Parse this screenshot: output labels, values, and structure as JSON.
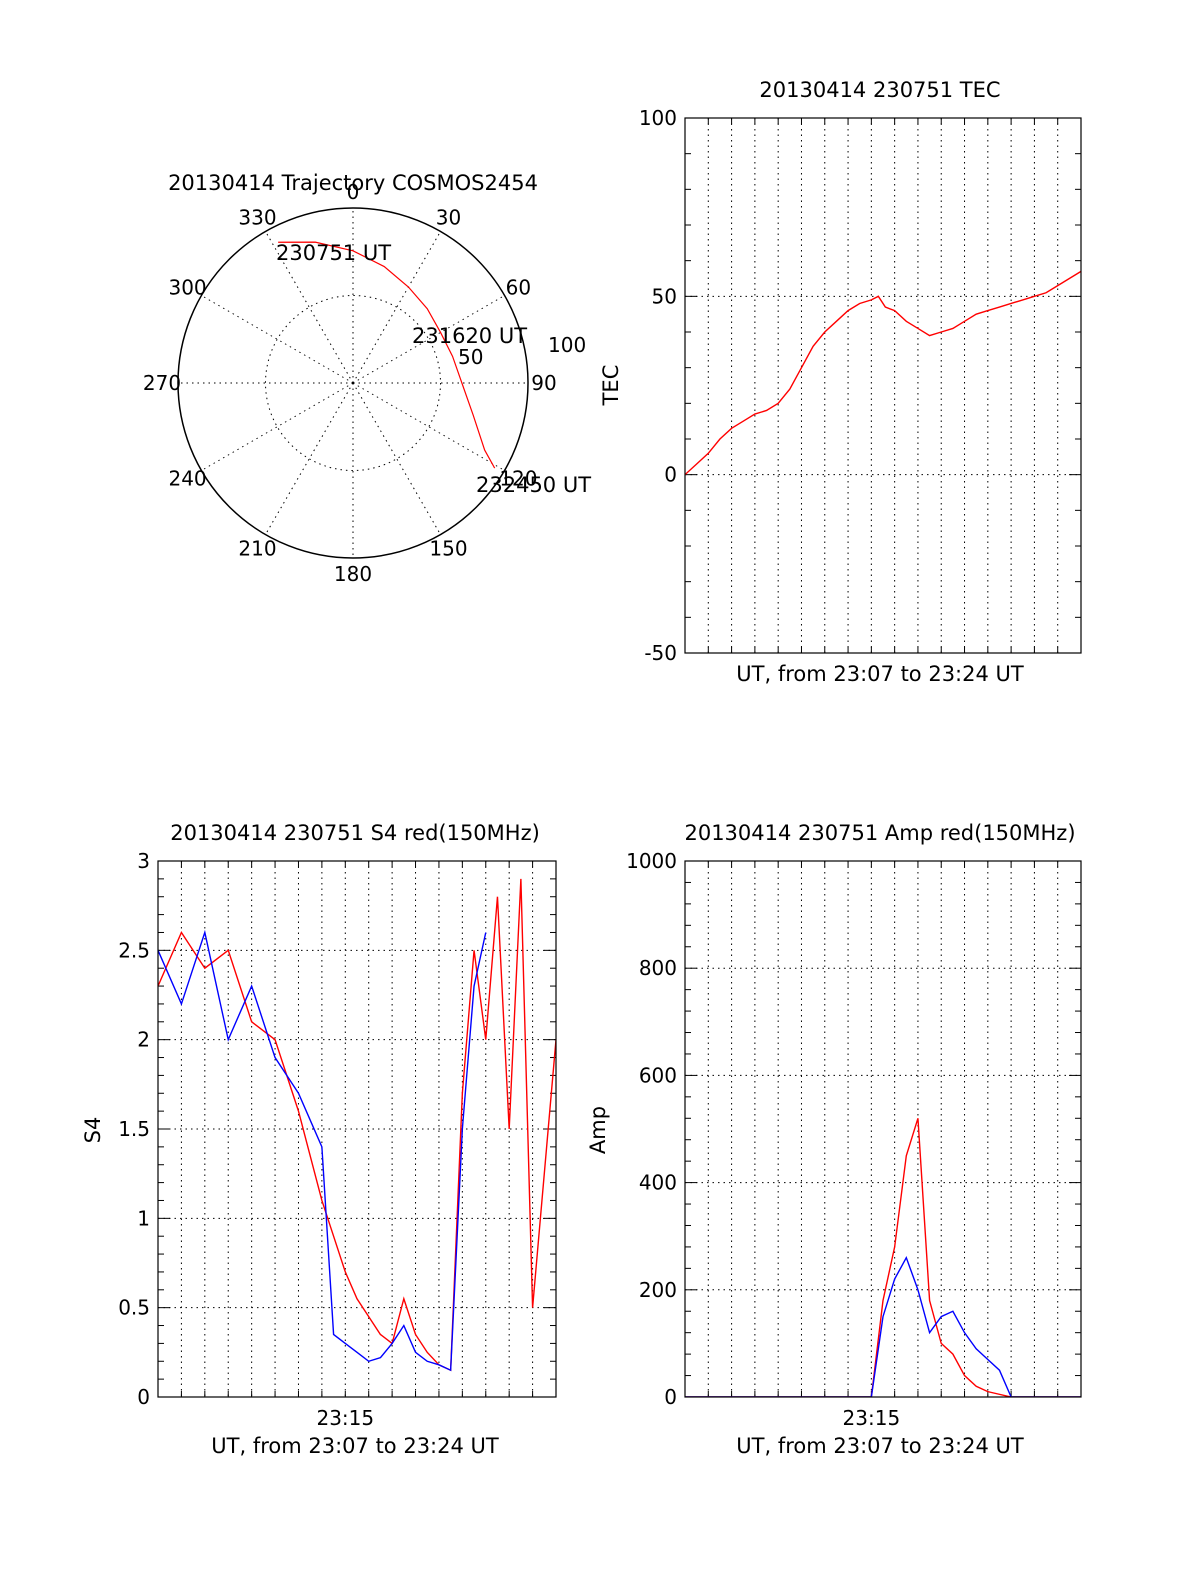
{
  "colors": {
    "primary": "#ff0000",
    "secondary": "#0000ff",
    "axis": "#000000"
  },
  "chart_data": [
    {
      "id": "polar",
      "type": "scatter",
      "title": "20130414 Trajectory COSMOS2454",
      "angle_labels": [
        "0",
        "30",
        "60",
        "90",
        "120",
        "150",
        "180",
        "210",
        "240",
        "270",
        "300",
        "330"
      ],
      "radial_labels": [
        "50",
        "100"
      ],
      "trajectory_az_el": [
        [
          332,
          8
        ],
        [
          345,
          15
        ],
        [
          0,
          22
        ],
        [
          15,
          28
        ],
        [
          30,
          33
        ],
        [
          45,
          36
        ],
        [
          60,
          38
        ],
        [
          75,
          37
        ],
        [
          90,
          34
        ],
        [
          105,
          26
        ],
        [
          117,
          14
        ],
        [
          121,
          5
        ]
      ],
      "annotations": [
        "230751 UT",
        "231620 UT",
        "232450 UT"
      ]
    },
    {
      "id": "tec",
      "type": "line",
      "title": "20130414 230751 TEC",
      "xlabel": "UT, from 23:07 to 23:24 UT",
      "ylabel": "TEC",
      "ylim": [
        -50,
        100
      ],
      "yticks": [
        "-50",
        "0",
        "50",
        "100"
      ],
      "grid": true,
      "series": [
        {
          "color": "#ff0000",
          "x": [
            0,
            0.5,
            1,
            1.5,
            2,
            2.5,
            3,
            3.5,
            4,
            4.5,
            5,
            5.5,
            6,
            6.5,
            7,
            7.5,
            8,
            8.3,
            8.6,
            9,
            9.5,
            10,
            10.5,
            11,
            11.5,
            12,
            12.5,
            13,
            13.5,
            14,
            14.5,
            15,
            15.5,
            16,
            16.5,
            17
          ],
          "y": [
            0,
            3,
            6,
            10,
            13,
            15,
            17,
            18,
            20,
            24,
            30,
            36,
            40,
            43,
            46,
            48,
            49,
            50,
            47,
            46,
            43,
            41,
            39,
            40,
            41,
            43,
            45,
            46,
            47,
            48,
            49,
            50,
            51,
            53,
            55,
            57
          ]
        }
      ]
    },
    {
      "id": "s4",
      "type": "line",
      "title": "20130414 230751 S4 red(150MHz)",
      "xlabel": "UT, from 23:07 to 23:24 UT",
      "ylabel": "S4",
      "ylim": [
        0,
        3
      ],
      "yticks": [
        "0",
        "0.5",
        "1",
        "1.5",
        "2",
        "2.5",
        "3"
      ],
      "xticks": [
        "23:15"
      ],
      "grid": true,
      "series": [
        {
          "color": "#ff0000",
          "x": [
            0,
            1,
            2,
            3,
            4,
            5,
            6,
            7,
            7.5,
            8,
            8.5,
            9,
            9.5,
            10,
            10.5,
            11,
            11.5,
            12,
            12.5,
            13,
            13.5,
            14,
            14.5,
            15,
            15.5,
            16,
            17
          ],
          "y": [
            2.3,
            2.6,
            2.4,
            2.5,
            2.1,
            2.0,
            1.6,
            1.1,
            0.9,
            0.7,
            0.55,
            0.45,
            0.35,
            0.3,
            0.55,
            0.35,
            0.25,
            0.18,
            0.15,
            1.7,
            2.5,
            2.0,
            2.8,
            1.5,
            2.9,
            0.5,
            2.0
          ]
        },
        {
          "color": "#0000ff",
          "x": [
            0,
            1,
            2,
            3,
            4,
            5,
            6,
            7,
            7.5,
            8,
            8.5,
            9,
            9.5,
            10,
            10.5,
            11,
            11.5,
            12,
            12.5,
            13,
            13.5,
            14
          ],
          "y": [
            2.5,
            2.2,
            2.6,
            2.0,
            2.3,
            1.9,
            1.7,
            1.4,
            0.35,
            0.3,
            0.25,
            0.2,
            0.22,
            0.3,
            0.4,
            0.25,
            0.2,
            0.18,
            0.15,
            1.5,
            2.3,
            2.6
          ]
        }
      ]
    },
    {
      "id": "amp",
      "type": "line",
      "title": "20130414 230751 Amp red(150MHz)",
      "xlabel": "UT, from 23:07 to 23:24 UT",
      "ylabel": "Amp",
      "ylim": [
        0,
        1000
      ],
      "yticks": [
        "0",
        "200",
        "400",
        "600",
        "800",
        "1000"
      ],
      "xticks": [
        "23:15"
      ],
      "grid": true,
      "series": [
        {
          "color": "#ff0000",
          "x": [
            0,
            8,
            8.5,
            9,
            9.5,
            10,
            10.5,
            11,
            11.5,
            12,
            12.5,
            13,
            14,
            17
          ],
          "y": [
            0,
            0,
            180,
            280,
            450,
            520,
            180,
            100,
            80,
            40,
            20,
            10,
            0,
            0
          ]
        },
        {
          "color": "#0000ff",
          "x": [
            0,
            8,
            8.5,
            9,
            9.5,
            10,
            10.5,
            11,
            11.5,
            12,
            12.5,
            13,
            13.5,
            14,
            17
          ],
          "y": [
            0,
            0,
            150,
            220,
            260,
            200,
            120,
            150,
            160,
            120,
            90,
            70,
            50,
            0,
            0
          ]
        }
      ]
    }
  ]
}
